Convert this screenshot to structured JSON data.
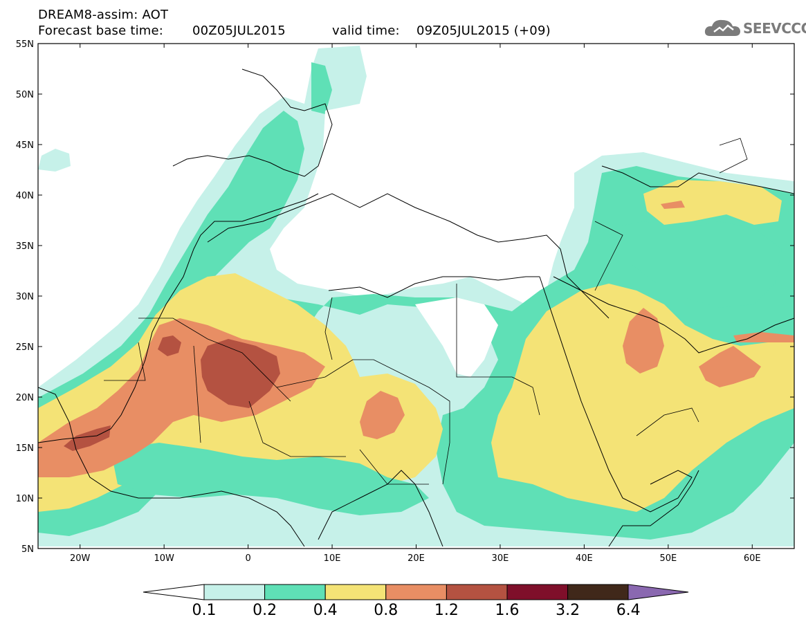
{
  "header": {
    "title": "DREAM8-assim: AOT",
    "base_label": "Forecast base time:",
    "base_value": "00Z05JUL2015",
    "valid_label": "valid time:",
    "valid_value": "09Z05JUL2015 (+09)"
  },
  "logo": {
    "text": "SEEVCCC",
    "icon": "cloud-icon"
  },
  "map": {
    "variable": "AOT",
    "lon_range": [
      -25,
      65
    ],
    "lat_range": [
      5,
      55
    ],
    "lat_labels": [
      "55N",
      "50N",
      "45N",
      "40N",
      "35N",
      "30N",
      "25N",
      "20N",
      "15N",
      "10N",
      "5N"
    ],
    "lon_labels": [
      "20W",
      "10W",
      "0",
      "10E",
      "20E",
      "30E",
      "40E",
      "50E",
      "60E"
    ]
  },
  "colorbar": {
    "labels": [
      "0.1",
      "0.2",
      "0.4",
      "0.8",
      "1.2",
      "1.6",
      "3.2",
      "6.4"
    ],
    "colors": [
      "#c6f1e9",
      "#5fe0b6",
      "#f4e376",
      "#e88e64",
      "#b45241",
      "#7f0f2a",
      "#40281a",
      "#8a68b0"
    ],
    "low_end_color": "#ffffff"
  }
}
